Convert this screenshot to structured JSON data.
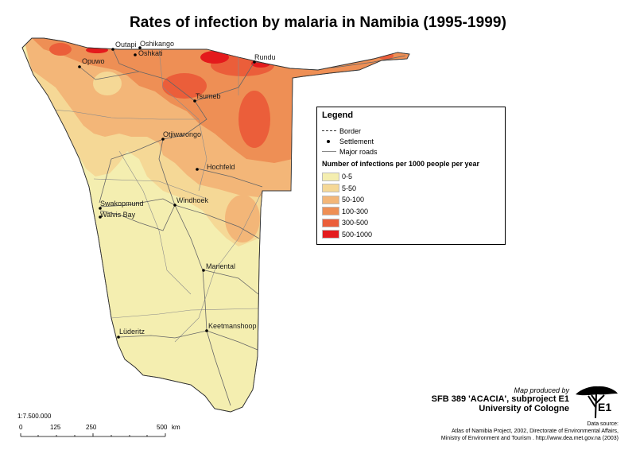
{
  "title": "Rates of infection by malaria in Namibia (1995-1999)",
  "map": {
    "settlements": [
      "Outapi",
      "Oshikango",
      "Oshkati",
      "Opuwo",
      "Rundu",
      "Tsumeb",
      "Otjiwarongo",
      "Hochfeld",
      "Swakopmund",
      "Walvis Bay",
      "Windhoek",
      "Mariental",
      "Lüderitz",
      "Keetmanshoop"
    ]
  },
  "legend": {
    "title": "Legend",
    "items": {
      "border": "Border",
      "settlement": "Settlement",
      "roads": "Major roads"
    },
    "subtitle": "Number of infections per 1000 people per year",
    "classes": [
      {
        "label": "0-5",
        "color": "#F4EEB0"
      },
      {
        "label": "5-50",
        "color": "#F5D896"
      },
      {
        "label": "50-100",
        "color": "#F3B678"
      },
      {
        "label": "100-300",
        "color": "#EE8F55"
      },
      {
        "label": "300-500",
        "color": "#EB5E3A"
      },
      {
        "label": "500-1000",
        "color": "#E41A1C"
      }
    ]
  },
  "scale": {
    "ratio": "1:7.500.000",
    "ticks": [
      "0",
      "125",
      "250",
      "500"
    ],
    "unit": "km"
  },
  "credit": {
    "produced_by": "Map produced by",
    "line1": "SFB 389 'ACACIA', subproject E1",
    "line2": "University of Cologne",
    "logo_text": "E1"
  },
  "source": {
    "label": "Data source:",
    "line1": "Atlas of Namibia Project, 2002, Directorate of Environmental Affairs,",
    "line2": "Ministry of Environment and Tourism . http://www.dea.met.gov.na (2003)"
  }
}
